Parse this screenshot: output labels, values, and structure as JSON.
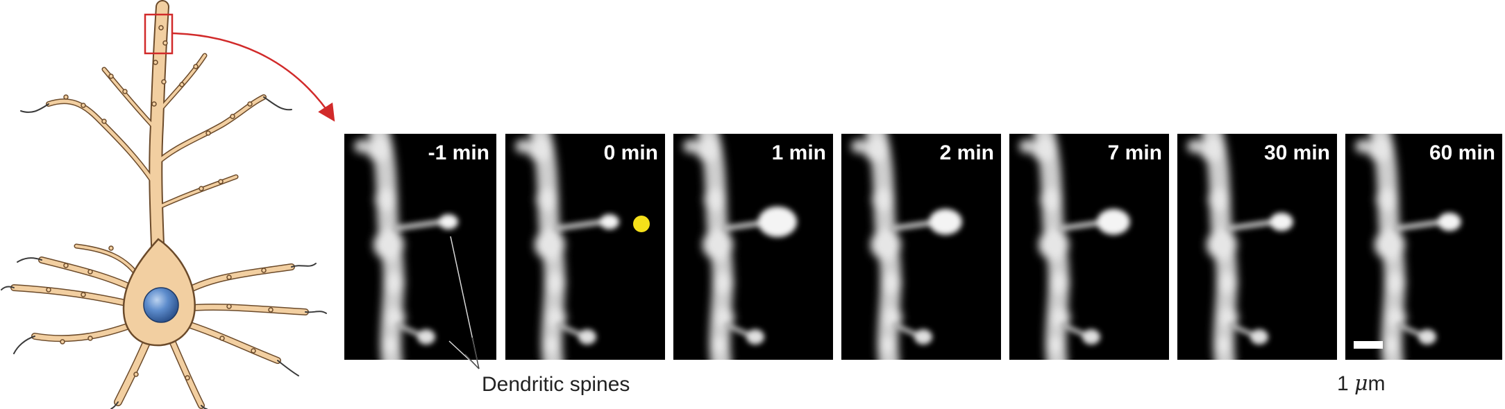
{
  "figure": {
    "panels": [
      {
        "time_label": "-1 min",
        "stimulus": false
      },
      {
        "time_label": "0 min",
        "stimulus": true
      },
      {
        "time_label": "1 min",
        "stimulus": false
      },
      {
        "time_label": "2 min",
        "stimulus": false
      },
      {
        "time_label": "7 min",
        "stimulus": false
      },
      {
        "time_label": "30 min",
        "stimulus": false
      },
      {
        "time_label": "60 min",
        "stimulus": false
      }
    ],
    "spine_label": "Dendritic spines",
    "scale_bar_label": {
      "value": "1",
      "unit_symbol": "μ",
      "unit_suffix": "m"
    },
    "colors": {
      "neuron_fill": "#f2cfa1",
      "neuron_outline": "#6b4a2a",
      "nucleus": "#3f6fb0",
      "zoom_box": "#d12a2a",
      "stimulus_dot": "#f5e01a",
      "panel_background": "#000000"
    }
  }
}
